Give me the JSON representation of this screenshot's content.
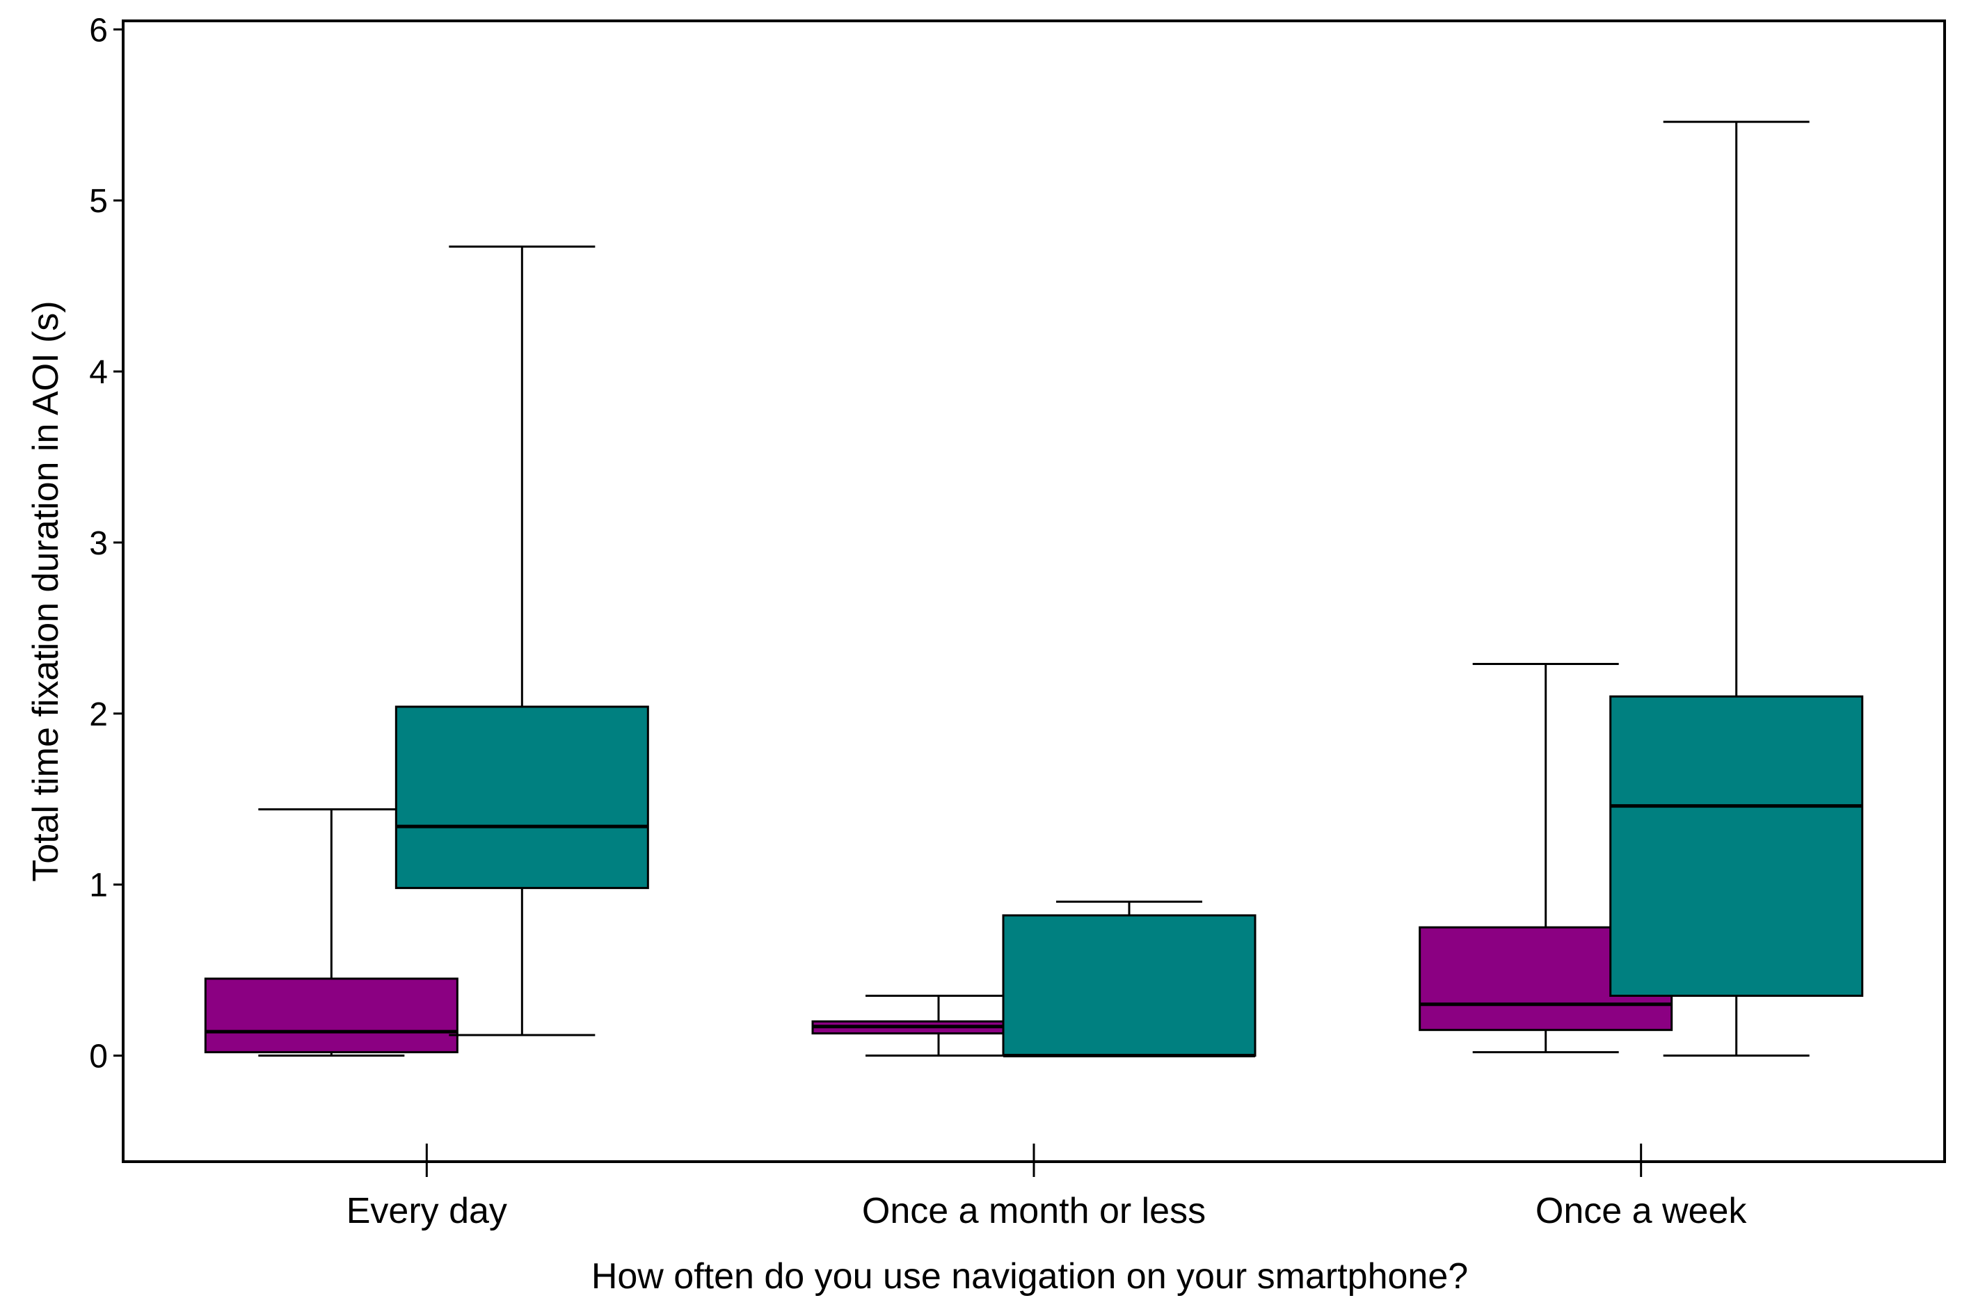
{
  "chart_data": {
    "type": "boxplot",
    "title": "",
    "xlabel": "How often do you use navigation on your smartphone?",
    "ylabel": "Total time fixation duration in AOI (s)",
    "ylim": [
      -0.62,
      6.05
    ],
    "yticks": [
      0,
      1,
      2,
      3,
      4,
      5,
      6
    ],
    "grid": false,
    "categories": [
      "Every day",
      "Once a month or less",
      "Once a week"
    ],
    "series": [
      {
        "name": "purple",
        "color": "#8B0082",
        "boxes": [
          {
            "whisker_low": 0.0,
            "q1": 0.02,
            "median": 0.14,
            "q3": 0.45,
            "whisker_high": 1.44
          },
          {
            "whisker_low": 0.0,
            "q1": 0.13,
            "median": 0.17,
            "q3": 0.2,
            "whisker_high": 0.35
          },
          {
            "whisker_low": 0.02,
            "q1": 0.15,
            "median": 0.3,
            "q3": 0.75,
            "whisker_high": 2.29
          }
        ]
      },
      {
        "name": "teal",
        "color": "#008080",
        "boxes": [
          {
            "whisker_low": 0.12,
            "q1": 0.98,
            "median": 1.34,
            "q3": 2.04,
            "whisker_high": 4.73
          },
          {
            "whisker_low": 0.0,
            "q1": 0.0,
            "median": 0.0,
            "q3": 0.82,
            "whisker_high": 0.9
          },
          {
            "whisker_low": 0.0,
            "q1": 0.35,
            "median": 1.46,
            "q3": 2.1,
            "whisker_high": 5.46
          }
        ]
      }
    ]
  }
}
